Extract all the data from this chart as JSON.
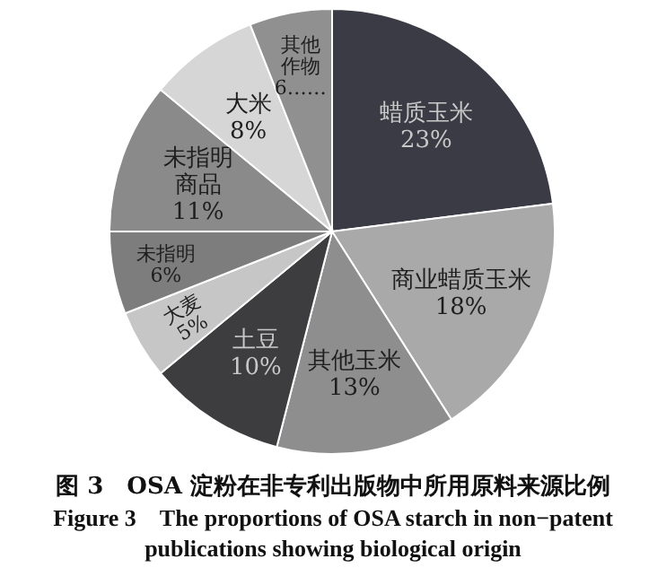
{
  "chart_data": {
    "type": "pie",
    "title": "图 3　OSA 淀粉在非专利出版物中所用原料来源比例",
    "subtitle": "Figure 3　The proportions of OSA starch in non−patent publications showing biological origin",
    "categories": [
      "蜡质玉米",
      "商业蜡质玉米",
      "其他玉米",
      "土豆",
      "大麦",
      "未指明",
      "未指明商品",
      "大米",
      "其他作物"
    ],
    "values": [
      23,
      18,
      13,
      10,
      5,
      6,
      11,
      8,
      6
    ],
    "value_labels": [
      "23%",
      "18%",
      "13%",
      "10%",
      "5%",
      "6%",
      "11%",
      "8%",
      "6……"
    ],
    "colors": [
      "#3a3b44",
      "#a9a9a9",
      "#8e8e8e",
      "#3d3d3f",
      "#c6c6c6",
      "#7d7d7d",
      "#8a8a8a",
      "#d6d6d6",
      "#909090"
    ]
  }
}
